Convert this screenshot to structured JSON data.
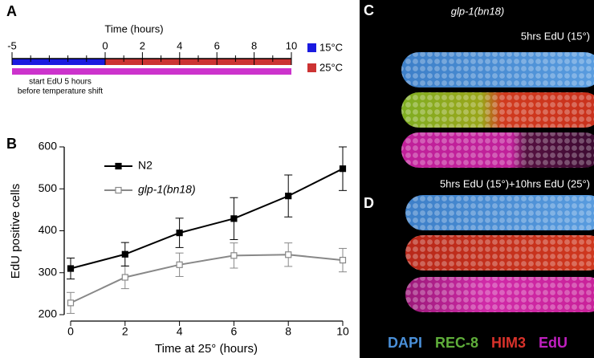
{
  "panel_labels": [
    "A",
    "B",
    "C",
    "D"
  ],
  "images": {
    "strain": "glp-1(bn18)",
    "caption_c": "5hrs EdU (15°)",
    "caption_d": "5hrs EdU (15°)+10hrs EdU (25°)",
    "stains": [
      {
        "name": "DAPI",
        "color": "#4a8fd8"
      },
      {
        "name": "REC-8",
        "color": "#5fae3a"
      },
      {
        "name": "HIM3",
        "color": "#d9322b"
      },
      {
        "name": "EdU",
        "color": "#c020c0"
      }
    ]
  },
  "chart_data": [
    {
      "type": "timeline",
      "title": "Time (hours)",
      "xlim": [
        -5,
        10
      ],
      "xticks": [
        -5,
        0,
        2,
        4,
        6,
        8,
        10
      ],
      "minor_xticks": [
        -4,
        -3,
        -2,
        -1,
        1,
        3,
        5,
        7,
        9
      ],
      "segments": [
        {
          "name": "15°C",
          "color": "#1a1ae0",
          "start": -5,
          "end": 0
        },
        {
          "name": "25°C",
          "color": "#cc3333",
          "start": 0,
          "end": 10
        }
      ],
      "edu_bar": {
        "color": "#cc33cc",
        "start": -5,
        "end": 10
      },
      "annotation": [
        "start EdU 5 hours",
        "before temperature shift"
      ]
    },
    {
      "type": "line",
      "xlabel": "Time at 25° (hours)",
      "ylabel": "EdU positive cells",
      "x": [
        0,
        2,
        4,
        6,
        8,
        10
      ],
      "xlim": [
        0,
        10
      ],
      "xticks": [
        0,
        2,
        4,
        6,
        8,
        10
      ],
      "ylim": [
        200,
        600
      ],
      "yticks": [
        200,
        300,
        400,
        500,
        600
      ],
      "series": [
        {
          "name": "N2",
          "color": "#000000",
          "marker": "filled-square",
          "values": [
            310,
            344,
            395,
            429,
            483,
            548
          ],
          "errors": [
            25,
            28,
            35,
            50,
            50,
            52
          ]
        },
        {
          "name": "glp-1(bn18)",
          "color": "#888888",
          "marker": "open-square",
          "values": [
            228,
            289,
            319,
            341,
            343,
            330
          ],
          "errors": [
            25,
            27,
            28,
            30,
            28,
            28
          ]
        }
      ]
    }
  ]
}
